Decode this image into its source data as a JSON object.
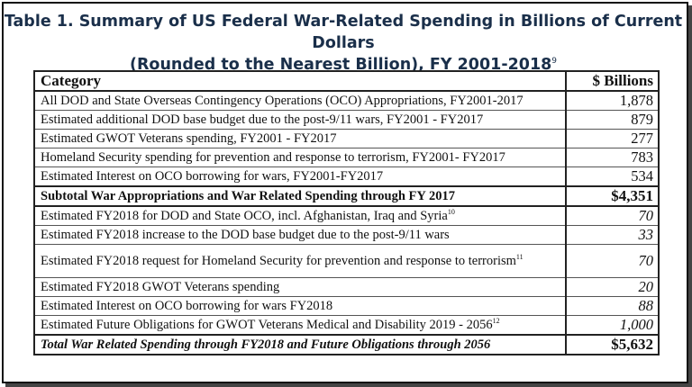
{
  "title": {
    "line1": "Table 1. Summary of US Federal War-Related Spending in Billions of Current Dollars",
    "line2": "(Rounded to the Nearest Billion), FY 2001-2018",
    "footnote": "9"
  },
  "table": {
    "headers": {
      "category": "Category",
      "value": "$ Billions"
    },
    "rows": [
      {
        "category": "All DOD and State Overseas Contingency Operations (OCO) Appropriations, FY2001-2017",
        "value": "1,878"
      },
      {
        "category": "Estimated additional DOD base budget due to the post-9/11 wars, FY2001 - FY2017",
        "value": "879"
      },
      {
        "category": "Estimated GWOT Veterans spending, FY2001 - FY2017",
        "value": "277"
      },
      {
        "category": "Homeland Security spending for prevention and response to terrorism, FY2001- FY2017",
        "value": "783"
      },
      {
        "category": "Estimated Interest on OCO borrowing for wars, FY2001-FY2017",
        "value": "534"
      },
      {
        "category": "Subtotal War Appropriations and War Related Spending through FY 2017",
        "value": "$4,351"
      },
      {
        "category": "Estimated FY2018 for DOD and State OCO, incl. Afghanistan, Iraq and Syria",
        "footnote": "10",
        "value": "70"
      },
      {
        "category": "Estimated FY2018 increase to the DOD base budget due to the post-9/11 wars",
        "value": "33"
      },
      {
        "category": "Estimated FY2018 request for Homeland Security for prevention and response to terrorism",
        "footnote": "11",
        "value": "70"
      },
      {
        "category": "Estimated FY2018 GWOT Veterans spending",
        "value": "20"
      },
      {
        "category": "Estimated Interest on OCO borrowing for wars FY2018",
        "value": "88"
      },
      {
        "category": "Estimated Future Obligations for GWOT Veterans Medical and Disability 2019 - 2056",
        "footnote": "12",
        "value": "1,000"
      },
      {
        "category": "Total War Related Spending through FY2018 and Future Obligations through 2056",
        "value": "$5,632"
      }
    ]
  }
}
